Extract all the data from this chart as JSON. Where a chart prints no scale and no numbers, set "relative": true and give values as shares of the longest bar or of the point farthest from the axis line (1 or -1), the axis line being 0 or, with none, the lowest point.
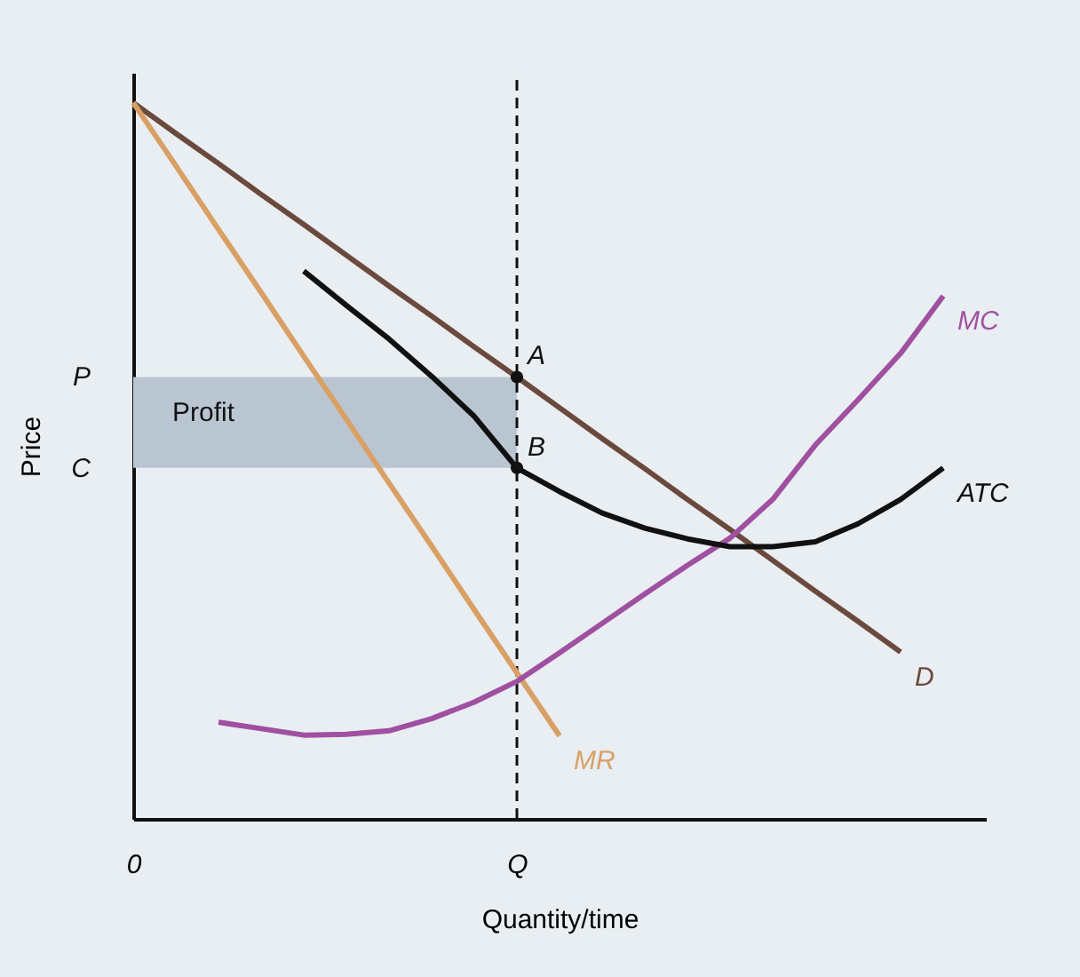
{
  "chart_data": {
    "type": "line",
    "relative": true,
    "xlabel": "Quantity/time",
    "ylabel": "Price",
    "categories": [
      "0",
      null,
      null,
      null,
      null,
      null,
      null,
      null,
      null,
      "Q",
      null,
      null,
      null,
      null,
      null,
      null,
      null,
      null,
      null,
      null,
      null
    ],
    "marker": "none",
    "series": [
      {
        "name": "D",
        "color": "#6b4a3e",
        "values": [
          1,
          0.957,
          0.915,
          0.872,
          0.83,
          0.787,
          0.744,
          0.702,
          0.659,
          0.617,
          0.574,
          0.531,
          0.489,
          0.446,
          0.404,
          0.361,
          0.318,
          0.276,
          0.233,
          null,
          null
        ]
      },
      {
        "name": "MR",
        "color": "#d9a066",
        "values": [
          1,
          0.912,
          0.823,
          0.735,
          0.646,
          0.558,
          0.469,
          0.381,
          0.292,
          0.204,
          0.116,
          null,
          null,
          null,
          null,
          null,
          null,
          null,
          null,
          null,
          null
        ]
      },
      {
        "name": "MC",
        "color": "#a050a0",
        "values": [
          null,
          null,
          0.135,
          0.126,
          0.117,
          0.118,
          0.123,
          0.14,
          0.163,
          0.192,
          0.232,
          0.273,
          0.314,
          0.354,
          0.392,
          0.446,
          0.522,
          0.585,
          0.65,
          0.73,
          null
        ]
      },
      {
        "name": "ATC",
        "color": "#111111",
        "values": [
          null,
          null,
          null,
          null,
          0.765,
          0.717,
          0.67,
          0.618,
          0.562,
          0.49,
          0.457,
          0.427,
          0.406,
          0.391,
          0.38,
          0.38,
          0.387,
          0.412,
          0.446,
          0.49,
          null
        ]
      },
      {
        "type": "scatter",
        "marker": "circle",
        "color": "#111111",
        "x": [
          "Q",
          "Q"
        ],
        "values": [
          0.617,
          0.49
        ]
      }
    ],
    "ref_lines": [
      {
        "axis": "x",
        "value": "Q",
        "line_style": "dashed",
        "color": "#111111"
      }
    ],
    "bands": [
      {
        "axis": "y",
        "from": 0.49,
        "to": 0.617,
        "label": "Profit",
        "color": "#b9c6d2"
      }
    ],
    "annotations": [
      {
        "text": "A",
        "x": "Q",
        "y": 0.617
      },
      {
        "text": "B",
        "x": "Q",
        "y": 0.49
      },
      "P",
      "C"
    ]
  }
}
